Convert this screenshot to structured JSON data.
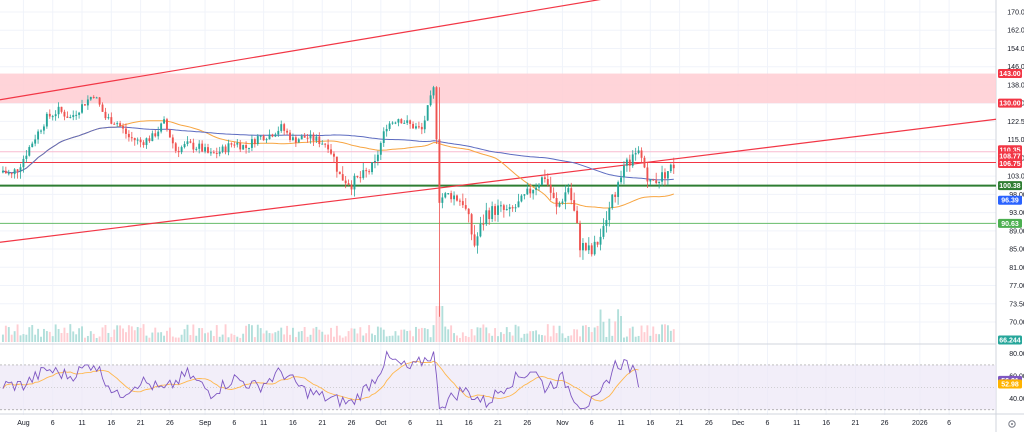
{
  "chart_data": [
    {
      "type": "candlestick",
      "panel": "price",
      "y_ticks": [
        170,
        162,
        154,
        146,
        138,
        130,
        122.5,
        115,
        108,
        103,
        98,
        93,
        89,
        85,
        81,
        77,
        73.5,
        70
      ],
      "y_tick_labels": [
        "170.00",
        "162.00",
        "154.00",
        "146.00",
        "138.00",
        "130.00",
        "122.50",
        "115.00",
        "108.00",
        "103.00",
        "98.00",
        "93.00",
        "89.00",
        "85.00",
        "81.00",
        "77.00",
        "73.50",
        "70.00"
      ],
      "ylim": [
        67,
        176
      ],
      "price_tags": [
        {
          "value": 143.0,
          "label": "143.00",
          "color": "#f23645"
        },
        {
          "value": 130.0,
          "label": "130.00",
          "color": "#f23645"
        },
        {
          "value": 110.35,
          "label": "110.35",
          "color": "#f23645"
        },
        {
          "value": 108.77,
          "label": "108.77",
          "color": "#f23645"
        },
        {
          "value": 106.75,
          "label": "106.75",
          "color": "#f23645"
        },
        {
          "value": 100.38,
          "label": "100.38",
          "color": "#2e7d32"
        },
        {
          "value": 96.39,
          "label": "96.39",
          "color": "#2962ff"
        },
        {
          "value": 90.63,
          "label": "90.63",
          "color": "#4caf50"
        },
        {
          "value": 66.244,
          "label": "66.244",
          "color": "#26a69a"
        }
      ],
      "resistance_zone": {
        "from": 130.0,
        "to": 143.0,
        "color": "#ffcdd2"
      },
      "horizontal_lines": [
        {
          "value": 110.35,
          "color": "#f8bbd0"
        },
        {
          "value": 106.75,
          "color": "#f23645"
        },
        {
          "value": 100.38,
          "color": "#2e7d32"
        },
        {
          "value": 90.63,
          "color": "#66bb6a"
        }
      ],
      "trendlines": [
        {
          "from": {
            "x": "2024-07-28",
            "y": 131.5
          },
          "to": {
            "x": "2024-11-11",
            "y": 177.0
          },
          "color": "#f23645"
        },
        {
          "from": {
            "x": "2024-07-28",
            "y": 86.5
          },
          "to": {
            "x": "2024-11-11",
            "y": 109.5
          },
          "color": "#f23645"
        }
      ],
      "close_series": [
        {
          "x": "2024-07-28",
          "y": 105
        },
        {
          "x": "2024-07-30",
          "y": 103
        },
        {
          "x": "2024-08-01",
          "y": 108
        },
        {
          "x": "2024-08-03",
          "y": 116
        },
        {
          "x": "2024-08-05",
          "y": 124
        },
        {
          "x": "2024-08-07",
          "y": 127
        },
        {
          "x": "2024-08-09",
          "y": 124
        },
        {
          "x": "2024-08-11",
          "y": 129
        },
        {
          "x": "2024-08-13",
          "y": 134
        },
        {
          "x": "2024-08-15",
          "y": 124
        },
        {
          "x": "2024-08-17",
          "y": 122
        },
        {
          "x": "2024-08-19",
          "y": 116
        },
        {
          "x": "2024-08-21",
          "y": 114
        },
        {
          "x": "2024-08-23",
          "y": 116
        },
        {
          "x": "2024-08-25",
          "y": 122
        },
        {
          "x": "2024-08-27",
          "y": 111
        },
        {
          "x": "2024-08-29",
          "y": 113
        },
        {
          "x": "2024-08-31",
          "y": 112
        },
        {
          "x": "2024-09-02",
          "y": 109
        },
        {
          "x": "2024-09-04",
          "y": 111
        },
        {
          "x": "2024-09-06",
          "y": 114
        },
        {
          "x": "2024-09-08",
          "y": 112
        },
        {
          "x": "2024-09-10",
          "y": 116
        },
        {
          "x": "2024-09-12",
          "y": 117
        },
        {
          "x": "2024-09-14",
          "y": 120
        },
        {
          "x": "2024-09-16",
          "y": 115
        },
        {
          "x": "2024-09-18",
          "y": 116
        },
        {
          "x": "2024-09-20",
          "y": 115
        },
        {
          "x": "2024-09-22",
          "y": 113
        },
        {
          "x": "2024-09-24",
          "y": 103
        },
        {
          "x": "2024-09-26",
          "y": 101
        },
        {
          "x": "2024-09-28",
          "y": 103
        },
        {
          "x": "2024-09-30",
          "y": 106
        },
        {
          "x": "2024-10-02",
          "y": 121
        },
        {
          "x": "2024-10-04",
          "y": 124
        },
        {
          "x": "2024-10-06",
          "y": 121
        },
        {
          "x": "2024-10-08",
          "y": 119
        },
        {
          "x": "2024-10-10",
          "y": 136
        },
        {
          "x": "2024-10-11",
          "y": 97
        },
        {
          "x": "2024-10-13",
          "y": 98
        },
        {
          "x": "2024-10-15",
          "y": 96
        },
        {
          "x": "2024-10-17",
          "y": 86
        },
        {
          "x": "2024-10-19",
          "y": 93
        },
        {
          "x": "2024-10-21",
          "y": 94
        },
        {
          "x": "2024-10-23",
          "y": 93
        },
        {
          "x": "2024-10-25",
          "y": 96
        },
        {
          "x": "2024-10-27",
          "y": 100
        },
        {
          "x": "2024-10-29",
          "y": 103
        },
        {
          "x": "2024-10-31",
          "y": 94
        },
        {
          "x": "2024-11-02",
          "y": 100
        },
        {
          "x": "2024-11-04",
          "y": 86
        },
        {
          "x": "2024-11-06",
          "y": 84
        },
        {
          "x": "2024-11-08",
          "y": 89
        },
        {
          "x": "2024-11-10",
          "y": 99
        },
        {
          "x": "2024-11-12",
          "y": 106
        },
        {
          "x": "2024-11-14",
          "y": 110
        },
        {
          "x": "2024-11-16",
          "y": 101
        },
        {
          "x": "2024-11-18",
          "y": 103
        },
        {
          "x": "2024-11-20",
          "y": 106
        }
      ],
      "x_tick_labels": [
        "Aug",
        "6",
        "11",
        "16",
        "21",
        "26",
        "Sep",
        "6",
        "11",
        "16",
        "21",
        "26",
        "Oct",
        "6",
        "11",
        "16",
        "21",
        "26",
        "Nov",
        "6",
        "11",
        "16",
        "21",
        "26",
        "Dec",
        "6",
        "11",
        "16",
        "21",
        "26",
        "2026",
        "6"
      ],
      "x_tick_positions_days": [
        0,
        5,
        10,
        15,
        20,
        25,
        31,
        36,
        41,
        46,
        51,
        56,
        61,
        66,
        71,
        76,
        81,
        86,
        92,
        97,
        102,
        107,
        112,
        117,
        122,
        127,
        132,
        137,
        142,
        147,
        153,
        158
      ],
      "x_range_days": [
        -4,
        166
      ]
    },
    {
      "type": "line",
      "panel": "rsi",
      "y_ticks": [
        80,
        60,
        40
      ],
      "y_tick_labels": [
        "80.00",
        "60.00",
        "40.00"
      ],
      "ylim": [
        28,
        86
      ],
      "band": [
        30,
        70
      ],
      "value_tags": [
        {
          "value": 56.21,
          "label": "56.21",
          "color": "#7e57c2"
        },
        {
          "value": 52.98,
          "label": "52.98",
          "color": "#ffb300"
        }
      ],
      "series": [
        {
          "x": 0,
          "y": 52
        },
        {
          "x": 4,
          "y": 66
        },
        {
          "x": 8,
          "y": 60
        },
        {
          "x": 12,
          "y": 72
        },
        {
          "x": 16,
          "y": 42
        },
        {
          "x": 20,
          "y": 56
        },
        {
          "x": 24,
          "y": 47
        },
        {
          "x": 28,
          "y": 62
        },
        {
          "x": 32,
          "y": 45
        },
        {
          "x": 36,
          "y": 58
        },
        {
          "x": 40,
          "y": 50
        },
        {
          "x": 44,
          "y": 64
        },
        {
          "x": 48,
          "y": 47
        },
        {
          "x": 52,
          "y": 40
        },
        {
          "x": 56,
          "y": 36
        },
        {
          "x": 60,
          "y": 58
        },
        {
          "x": 62,
          "y": 76
        },
        {
          "x": 66,
          "y": 66
        },
        {
          "x": 70,
          "y": 80
        },
        {
          "x": 71,
          "y": 33
        },
        {
          "x": 75,
          "y": 48
        },
        {
          "x": 79,
          "y": 36
        },
        {
          "x": 83,
          "y": 55
        },
        {
          "x": 87,
          "y": 66
        },
        {
          "x": 89,
          "y": 50
        },
        {
          "x": 92,
          "y": 58
        },
        {
          "x": 95,
          "y": 34
        },
        {
          "x": 98,
          "y": 38
        },
        {
          "x": 101,
          "y": 70
        },
        {
          "x": 103,
          "y": 72
        },
        {
          "x": 105,
          "y": 56
        }
      ]
    }
  ]
}
